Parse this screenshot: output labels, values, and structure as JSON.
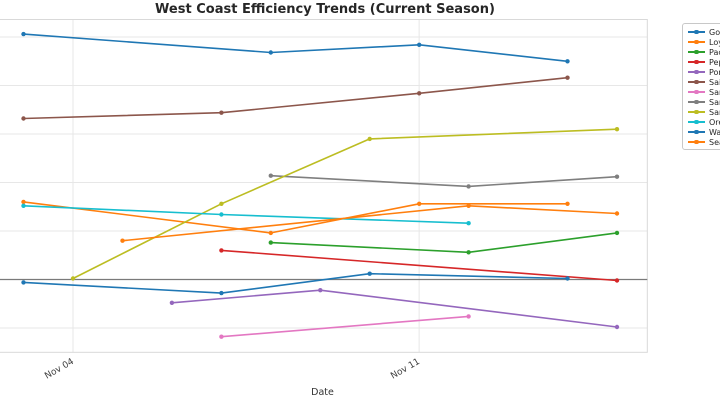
{
  "figure": {
    "background": "#ffffff",
    "grid_color": "#e7e7e7",
    "border_color": "#d9d9d9",
    "zero_line_color": "#7a7a7a",
    "tick_label_color": "#404040"
  },
  "chart_data": {
    "type": "line",
    "title": "West Coast Efficiency Trends (Current Season)",
    "xlabel": "Date",
    "ylabel": "",
    "x_unit": "day of November",
    "x_ticks": [
      {
        "day": 4,
        "label": "Nov 04"
      },
      {
        "day": 11,
        "label": "Nov 11"
      }
    ],
    "xlim_days": [
      2.5,
      15.6
    ],
    "ylim": [
      -0.075,
      0.267
    ],
    "y_gridline_values": [
      -0.05,
      0.0,
      0.05,
      0.1,
      0.15,
      0.2,
      0.25
    ],
    "y_tick_labels_visible": false,
    "zero_line": 0.0,
    "grid": true,
    "marker": "dot",
    "legend_position": "upper-right outside plot, clipped by image edge (labels truncated)",
    "series": [
      {
        "name": "Gon",
        "color": "#1f77b4",
        "points": [
          [
            3,
            0.253
          ],
          [
            8,
            0.234
          ],
          [
            11,
            0.242
          ],
          [
            14,
            0.225
          ]
        ]
      },
      {
        "name": "Loy",
        "color": "#ff7f0e",
        "points": [
          [
            3,
            0.08
          ],
          [
            8,
            0.048
          ],
          [
            11,
            0.078
          ],
          [
            14,
            0.078
          ]
        ]
      },
      {
        "name": "Pac",
        "color": "#2ca02c",
        "points": [
          [
            8,
            0.038
          ],
          [
            12,
            0.028
          ],
          [
            15,
            0.048
          ]
        ]
      },
      {
        "name": "Pep",
        "color": "#d62728",
        "points": [
          [
            7,
            0.03
          ],
          [
            15,
            -0.001
          ]
        ]
      },
      {
        "name": "Por",
        "color": "#9467bd",
        "points": [
          [
            6,
            -0.024
          ],
          [
            9,
            -0.011
          ],
          [
            15,
            -0.049
          ]
        ]
      },
      {
        "name": "Sai",
        "color": "#8c564b",
        "points": [
          [
            3,
            0.166
          ],
          [
            7,
            0.172
          ],
          [
            11,
            0.192
          ],
          [
            14,
            0.208
          ]
        ]
      },
      {
        "name": "San",
        "color": "#e377c2",
        "points": [
          [
            7,
            -0.059
          ],
          [
            12,
            -0.038
          ]
        ]
      },
      {
        "name": "San",
        "color": "#7f7f7f",
        "points": [
          [
            8,
            0.107
          ],
          [
            12,
            0.096
          ],
          [
            15,
            0.106
          ]
        ]
      },
      {
        "name": "San",
        "color": "#bcbd22",
        "points": [
          [
            4,
            0.001
          ],
          [
            7,
            0.078
          ],
          [
            10,
            0.145
          ],
          [
            15,
            0.155
          ]
        ]
      },
      {
        "name": "Ore",
        "color": "#17becf",
        "points": [
          [
            3,
            0.076
          ],
          [
            7,
            0.067
          ],
          [
            12,
            0.058
          ]
        ]
      },
      {
        "name": "Wa",
        "color": "#1f77b4",
        "points": [
          [
            3,
            -0.003
          ],
          [
            7,
            -0.014
          ],
          [
            10,
            0.006
          ],
          [
            14,
            0.001
          ]
        ]
      },
      {
        "name": "Sea",
        "color": "#ff7f0e",
        "points": [
          [
            5,
            0.04
          ],
          [
            12,
            0.076
          ],
          [
            15,
            0.068
          ]
        ]
      }
    ]
  }
}
